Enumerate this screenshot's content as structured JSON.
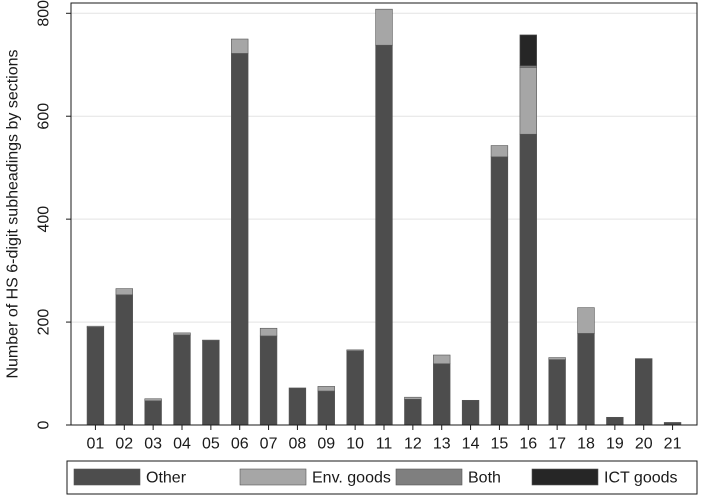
{
  "chart_data": {
    "type": "bar",
    "stacked": true,
    "title": "",
    "xlabel": "",
    "ylabel": "Number of HS 6-digit subheadings by sections",
    "ylim": [
      0,
      820
    ],
    "yticks": [
      0,
      200,
      400,
      600,
      800
    ],
    "grid": true,
    "legend_position": "bottom",
    "categories": [
      "01",
      "02",
      "03",
      "04",
      "05",
      "06",
      "07",
      "08",
      "09",
      "10",
      "11",
      "12",
      "13",
      "14",
      "15",
      "16",
      "17",
      "18",
      "19",
      "20",
      "21"
    ],
    "series": [
      {
        "name": "Other",
        "color": "#4d4d4d",
        "values": [
          190,
          253,
          47,
          175,
          164,
          722,
          173,
          72,
          66,
          144,
          738,
          50,
          119,
          48,
          521,
          565,
          127,
          178,
          15,
          129,
          5
        ]
      },
      {
        "name": "Env. goods",
        "color": "#a6a6a6",
        "values": [
          2,
          12,
          4,
          4,
          1,
          28,
          15,
          0,
          9,
          2,
          70,
          4,
          17,
          0,
          22,
          130,
          4,
          50,
          0,
          0,
          0
        ]
      },
      {
        "name": "Both",
        "color": "#7f7f7f",
        "values": [
          0,
          0,
          0,
          0,
          0,
          0,
          0,
          0,
          0,
          0,
          0,
          0,
          0,
          0,
          0,
          3,
          0,
          0,
          0,
          0,
          0
        ]
      },
      {
        "name": "ICT goods",
        "color": "#262626",
        "values": [
          0,
          0,
          0,
          0,
          0,
          0,
          0,
          0,
          0,
          0,
          0,
          0,
          0,
          0,
          0,
          60,
          0,
          0,
          0,
          0,
          0
        ]
      }
    ]
  }
}
